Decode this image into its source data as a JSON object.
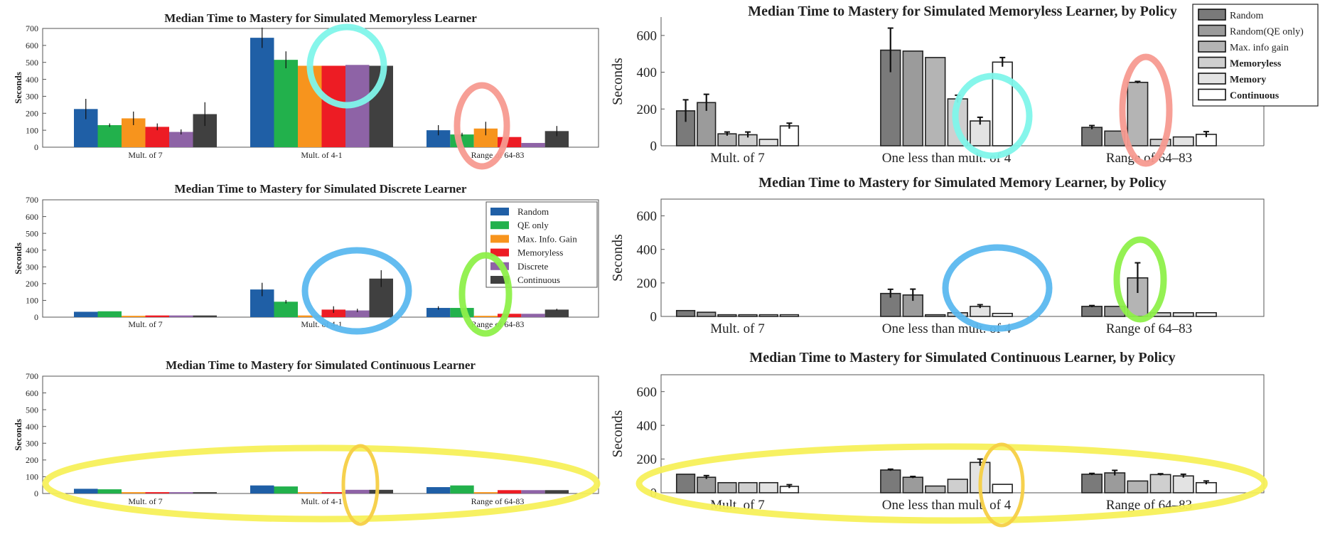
{
  "left_colors": [
    "#1f5fa6",
    "#22b14c",
    "#f7941d",
    "#ed1c24",
    "#8e63a6",
    "#404040"
  ],
  "right_fills": [
    "#7a7a7a",
    "#9b9b9b",
    "#b4b4b4",
    "#cfcfcf",
    "#e3e3e3",
    "#ffffff"
  ],
  "legend_left": {
    "entries": [
      "Random",
      "QE only",
      "Max. Info. Gain",
      "Memoryless",
      "Discrete",
      "Continuous"
    ]
  },
  "legend_right": {
    "entries": [
      "Random",
      "Random(QE only)",
      "Max. info gain",
      "Memoryless",
      "Memory",
      "Continuous"
    ]
  },
  "annotations": {
    "ellipse_colors": [
      "#7ff5ea",
      "#f79a90",
      "#5bb8ef",
      "#8ef04a",
      "#f7f05a",
      "#f5cf45"
    ]
  },
  "chart_data": [
    {
      "type": "bar",
      "title": "Median Time to Mastery for Simulated Memoryless Learner",
      "ylabel": "Seconds",
      "ylim": [
        0,
        700
      ],
      "yticks": [
        "0",
        "100",
        "200",
        "300",
        "400",
        "500",
        "600",
        "700"
      ],
      "categories": [
        "Mult. of 7",
        "Mult. of 4-1",
        "Range of 64-83"
      ],
      "series": [
        {
          "name": "Random",
          "values": [
            225,
            645,
            100
          ],
          "err": [
            60,
            60,
            30
          ]
        },
        {
          "name": "QE only",
          "values": [
            130,
            515,
            75
          ],
          "err": [
            10,
            50,
            10
          ]
        },
        {
          "name": "Max. Info. Gain",
          "values": [
            170,
            480,
            110
          ],
          "err": [
            40,
            0,
            40
          ]
        },
        {
          "name": "Memoryless",
          "values": [
            120,
            480,
            60
          ],
          "err": [
            20,
            0,
            0
          ]
        },
        {
          "name": "Discrete",
          "values": [
            90,
            485,
            25
          ],
          "err": [
            15,
            0,
            0
          ]
        },
        {
          "name": "Continuous",
          "values": [
            195,
            480,
            95
          ],
          "err": [
            70,
            0,
            30
          ]
        }
      ]
    },
    {
      "type": "bar",
      "title": "Median Time to Mastery for Simulated Discrete Learner",
      "ylabel": "Seconds",
      "ylim": [
        0,
        700
      ],
      "yticks": [
        "0",
        "100",
        "200",
        "300",
        "400",
        "500",
        "600",
        "700"
      ],
      "categories": [
        "Mult. of 7",
        "Mult. of 4-1",
        "Range of 64-83"
      ],
      "series": [
        {
          "name": "Random",
          "values": [
            32,
            165,
            55
          ],
          "err": [
            0,
            40,
            10
          ]
        },
        {
          "name": "QE only",
          "values": [
            35,
            92,
            55
          ],
          "err": [
            0,
            10,
            0
          ]
        },
        {
          "name": "Max. Info. Gain",
          "values": [
            8,
            10,
            8
          ],
          "err": [
            0,
            0,
            0
          ]
        },
        {
          "name": "Memoryless",
          "values": [
            10,
            45,
            20
          ],
          "err": [
            0,
            20,
            0
          ]
        },
        {
          "name": "Discrete",
          "values": [
            10,
            40,
            20
          ],
          "err": [
            0,
            10,
            0
          ]
        },
        {
          "name": "Continuous",
          "values": [
            10,
            230,
            45
          ],
          "err": [
            0,
            50,
            5
          ]
        }
      ]
    },
    {
      "type": "bar",
      "title": "Median Time to Mastery for Simulated Continuous Learner",
      "ylabel": "Seconds",
      "ylim": [
        0,
        700
      ],
      "yticks": [
        "0",
        "100",
        "200",
        "300",
        "400",
        "500",
        "600",
        "700"
      ],
      "categories": [
        "Mult. of 7",
        "Mult. of 4-1",
        "Range of 64-83"
      ],
      "series": [
        {
          "name": "Random",
          "values": [
            28,
            48,
            38
          ],
          "err": [
            0,
            0,
            0
          ]
        },
        {
          "name": "QE only",
          "values": [
            25,
            42,
            48
          ],
          "err": [
            0,
            0,
            0
          ]
        },
        {
          "name": "Max. Info. Gain",
          "values": [
            8,
            8,
            8
          ],
          "err": [
            0,
            0,
            0
          ]
        },
        {
          "name": "Memoryless",
          "values": [
            8,
            8,
            20
          ],
          "err": [
            0,
            0,
            0
          ]
        },
        {
          "name": "Discrete",
          "values": [
            8,
            22,
            20
          ],
          "err": [
            0,
            0,
            0
          ]
        },
        {
          "name": "Continuous",
          "values": [
            8,
            22,
            20
          ],
          "err": [
            0,
            0,
            0
          ]
        }
      ]
    },
    {
      "type": "bar",
      "title": "Median Time to Mastery for Simulated Memoryless Learner, by Policy",
      "ylabel": "Seconds",
      "ylim": [
        0,
        700
      ],
      "yticks": [
        "0",
        "200",
        "400",
        "600"
      ],
      "categories": [
        "Mult. of 7",
        "One less than mult. of 4",
        "Range of 64–83"
      ],
      "series": [
        {
          "name": "Random",
          "values": [
            190,
            520,
            100
          ],
          "err": [
            60,
            120,
            10
          ]
        },
        {
          "name": "Random(QE only)",
          "values": [
            235,
            515,
            80
          ],
          "err": [
            45,
            0,
            0
          ]
        },
        {
          "name": "Max. info gain",
          "values": [
            65,
            480,
            345
          ],
          "err": [
            10,
            0,
            5
          ]
        },
        {
          "name": "Memoryless",
          "values": [
            60,
            255,
            35
          ],
          "err": [
            15,
            20,
            0
          ]
        },
        {
          "name": "Memory",
          "values": [
            35,
            135,
            48
          ],
          "err": [
            0,
            20,
            0
          ]
        },
        {
          "name": "Continuous",
          "values": [
            108,
            455,
            62
          ],
          "err": [
            15,
            25,
            15
          ]
        }
      ]
    },
    {
      "type": "bar",
      "title": "Median Time to Mastery for Simulated Memory Learner, by Policy",
      "ylabel": "Seconds",
      "ylim": [
        0,
        700
      ],
      "yticks": [
        "0",
        "200",
        "400",
        "600"
      ],
      "categories": [
        "Mult. of 7",
        "One less than mult. of 4",
        "Range of 64–83"
      ],
      "series": [
        {
          "name": "Random",
          "values": [
            35,
            137,
            60
          ],
          "err": [
            0,
            25,
            5
          ]
        },
        {
          "name": "Random(QE only)",
          "values": [
            25,
            128,
            60
          ],
          "err": [
            0,
            35,
            0
          ]
        },
        {
          "name": "Max. info gain",
          "values": [
            10,
            10,
            230
          ],
          "err": [
            0,
            0,
            90
          ]
        },
        {
          "name": "Memoryless",
          "values": [
            10,
            22,
            22
          ],
          "err": [
            0,
            0,
            0
          ]
        },
        {
          "name": "Memory",
          "values": [
            10,
            60,
            22
          ],
          "err": [
            0,
            10,
            0
          ]
        },
        {
          "name": "Continuous",
          "values": [
            10,
            18,
            22
          ],
          "err": [
            0,
            0,
            0
          ]
        }
      ]
    },
    {
      "type": "bar",
      "title": "Median Time to Mastery for Simulated Continuous Learner, by Policy",
      "ylabel": "Seconds",
      "ylim": [
        0,
        700
      ],
      "yticks": [
        "0",
        "200",
        "400",
        "600"
      ],
      "categories": [
        "Mult. of 7",
        "One less than mult. of 4",
        "Range of 64–83"
      ],
      "series": [
        {
          "name": "Random",
          "values": [
            110,
            135,
            110
          ],
          "err": [
            0,
            5,
            5
          ]
        },
        {
          "name": "Random(QE only)",
          "values": [
            92,
            92,
            118
          ],
          "err": [
            10,
            5,
            15
          ]
        },
        {
          "name": "Max. info gain",
          "values": [
            60,
            40,
            70
          ],
          "err": [
            0,
            0,
            0
          ]
        },
        {
          "name": "Memoryless",
          "values": [
            60,
            80,
            108
          ],
          "err": [
            0,
            0,
            5
          ]
        },
        {
          "name": "Memory",
          "values": [
            60,
            180,
            100
          ],
          "err": [
            0,
            20,
            10
          ]
        },
        {
          "name": "Continuous",
          "values": [
            38,
            50,
            60
          ],
          "err": [
            10,
            0,
            10
          ]
        }
      ]
    }
  ]
}
